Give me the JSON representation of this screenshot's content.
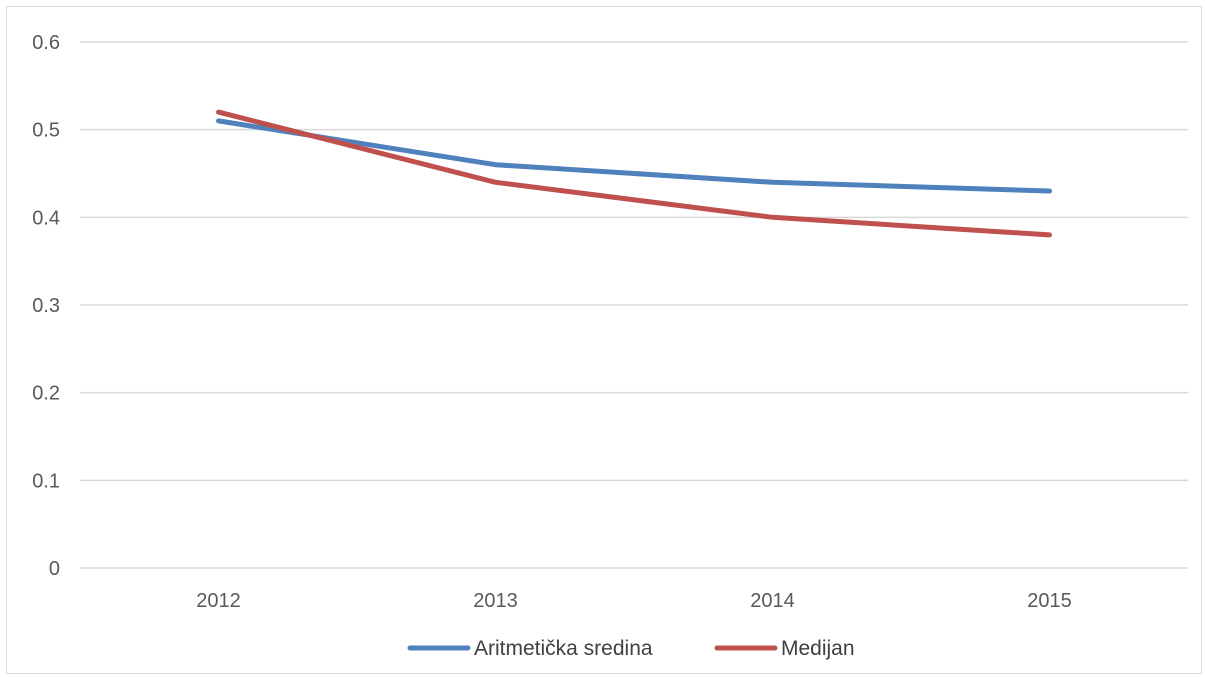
{
  "chart_data": {
    "type": "line",
    "title": "",
    "xlabel": "",
    "ylabel": "",
    "categories": [
      "2012",
      "2013",
      "2014",
      "2015"
    ],
    "series": [
      {
        "name": "Aritmetička sredina",
        "color": "#4f81bd",
        "values": [
          0.51,
          0.46,
          0.44,
          0.43
        ]
      },
      {
        "name": "Medijan",
        "color": "#c0504d",
        "values": [
          0.52,
          0.44,
          0.4,
          0.38
        ]
      }
    ],
    "ylim": [
      0,
      0.6
    ],
    "yticks": [
      "0",
      "0.1",
      "0.2",
      "0.3",
      "0.4",
      "0.5",
      "0.6"
    ],
    "grid": true,
    "legend_position": "bottom"
  }
}
